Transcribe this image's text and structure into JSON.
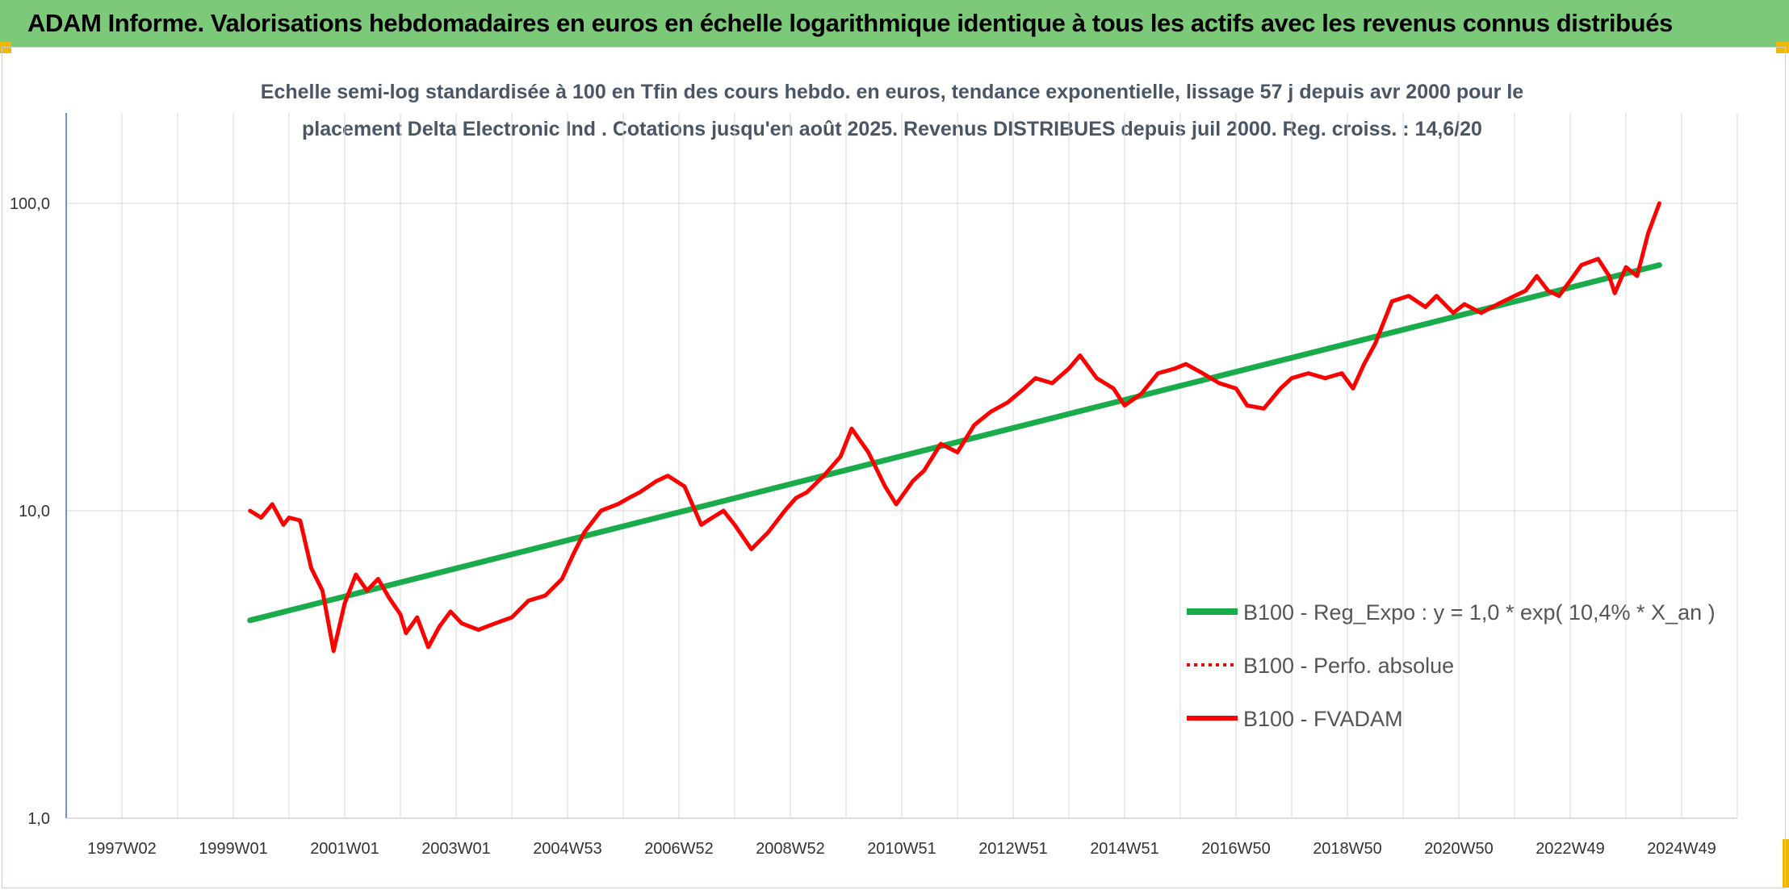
{
  "banner": {
    "title": "ADAM Informe. Valorisations hebdomadaires en euros en échelle logarithmique identique à tous les actifs avec les revenus connus distribués"
  },
  "colors": {
    "banner_bg": "#7dc97a",
    "trend": "#1aac4a",
    "fvadam": "#ff0000",
    "perf_absolue": "#ff0000",
    "axis": "#4472c4",
    "grid": "#d9d9d9"
  },
  "chart_data": {
    "type": "line",
    "title_lines": [
      "Echelle semi-log standardisée à 100 en Tfin des cours hebdo. en euros, tendance exponentielle, lissage 57 j depuis avr 2000 pour le",
      "placement Delta Electronic Ind . Cotations jusqu'en août 2025. Revenus DISTRIBUES depuis juil 2000. Reg. croiss. : 14,6/20"
    ],
    "y_scale": "log",
    "ylim": [
      1,
      100
    ],
    "y_ticks": [
      "100,0",
      "10,0",
      "1,0"
    ],
    "x_tick_labels": [
      "1997W02",
      "1999W01",
      "2001W01",
      "2003W01",
      "2004W53",
      "2006W52",
      "2008W52",
      "2010W51",
      "2012W51",
      "2014W51",
      "2016W50",
      "2018W50",
      "2020W50",
      "2022W49",
      "2024W49"
    ],
    "grid": true,
    "legend_position": "right",
    "series": [
      {
        "name": "B100 - Reg_Expo : y = 1,0 * exp( 10,4% *  X_an )",
        "style": "solid-green",
        "x": [
          2000.3,
          2025.6
        ],
        "y": [
          4.4,
          63
        ]
      },
      {
        "name": "B100 - Perfo. absolue",
        "style": "dotted-red",
        "x": [],
        "y": []
      },
      {
        "name": "B100 - FVADAM",
        "style": "solid-red",
        "x": [
          2000.3,
          2000.5,
          2000.7,
          2000.9,
          2001.0,
          2001.2,
          2001.4,
          2001.6,
          2001.8,
          2002.0,
          2002.2,
          2002.4,
          2002.6,
          2002.8,
          2003.0,
          2003.1,
          2003.3,
          2003.5,
          2003.7,
          2003.9,
          2004.1,
          2004.4,
          2004.7,
          2005.0,
          2005.3,
          2005.6,
          2005.9,
          2006.1,
          2006.3,
          2006.6,
          2006.9,
          2007.1,
          2007.3,
          2007.6,
          2007.8,
          2008.1,
          2008.4,
          2008.6,
          2008.8,
          2009.0,
          2009.3,
          2009.6,
          2009.9,
          2010.1,
          2010.3,
          2010.6,
          2010.9,
          2011.1,
          2011.4,
          2011.7,
          2011.9,
          2012.2,
          2012.4,
          2012.7,
          2013.0,
          2013.3,
          2013.6,
          2013.9,
          2014.2,
          2014.4,
          2014.7,
          2015.0,
          2015.2,
          2015.5,
          2015.8,
          2016.0,
          2016.3,
          2016.6,
          2016.9,
          2017.1,
          2017.4,
          2017.7,
          2018.0,
          2018.2,
          2018.5,
          2018.8,
          2019.0,
          2019.3,
          2019.6,
          2019.9,
          2020.1,
          2020.3,
          2020.5,
          2020.8,
          2021.1,
          2021.4,
          2021.6,
          2021.9,
          2022.1,
          2022.4,
          2022.7,
          2023.0,
          2023.2,
          2023.4,
          2023.6,
          2023.8,
          2024.0,
          2024.2,
          2024.5,
          2024.7,
          2024.8,
          2025.0,
          2025.2,
          2025.4,
          2025.6
        ],
        "y": [
          10.0,
          9.5,
          10.5,
          9.0,
          9.5,
          9.3,
          6.5,
          5.5,
          3.5,
          5.0,
          6.2,
          5.5,
          6.0,
          5.2,
          4.6,
          4.0,
          4.5,
          3.6,
          4.2,
          4.7,
          4.3,
          4.1,
          4.3,
          4.5,
          5.1,
          5.3,
          6.0,
          7.2,
          8.5,
          10.0,
          10.5,
          11.0,
          11.5,
          12.5,
          13.0,
          12.0,
          9.0,
          9.5,
          10.0,
          9.0,
          7.5,
          8.5,
          10.0,
          11.0,
          11.5,
          13.0,
          15.0,
          18.5,
          15.5,
          12.0,
          10.5,
          12.5,
          13.5,
          16.5,
          15.5,
          19.0,
          21.0,
          22.5,
          25.0,
          27.0,
          26.0,
          29.0,
          32.0,
          27.0,
          25.0,
          22.0,
          24.0,
          28.0,
          29.0,
          30.0,
          28.0,
          26.0,
          25.0,
          22.0,
          21.5,
          25.0,
          27.0,
          28.0,
          27.0,
          28.0,
          25.0,
          30.0,
          35.0,
          48.0,
          50.0,
          46.0,
          50.0,
          44.0,
          47.0,
          44.0,
          47.0,
          50.0,
          52.0,
          58.0,
          52.0,
          50.0,
          56.0,
          63.0,
          66.0,
          58.0,
          51.0,
          62.0,
          58.0,
          80.0,
          100.0
        ]
      }
    ]
  }
}
